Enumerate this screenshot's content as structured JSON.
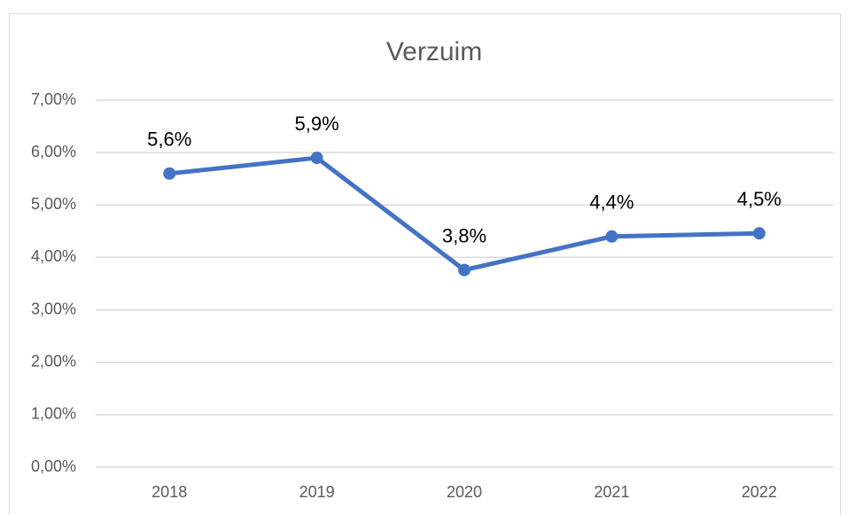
{
  "chart_data": {
    "type": "line",
    "title": "Verzuim",
    "categories": [
      "2018",
      "2019",
      "2020",
      "2021",
      "2022"
    ],
    "series": [
      {
        "name": "Verzuim",
        "color": "#4472c4",
        "values": [
          5.6,
          5.9,
          3.76,
          4.4,
          4.46
        ],
        "value_labels": [
          "5,6%",
          "5,9%",
          "3,8%",
          "4,4%",
          "4,5%"
        ]
      }
    ],
    "ylim": [
      0,
      7
    ],
    "yticks": [
      {
        "value": 0,
        "label": "0,00%"
      },
      {
        "value": 1,
        "label": "1,00%"
      },
      {
        "value": 2,
        "label": "2,00%"
      },
      {
        "value": 3,
        "label": "3,00%"
      },
      {
        "value": 4,
        "label": "4,00%"
      },
      {
        "value": 5,
        "label": "5,00%"
      },
      {
        "value": 6,
        "label": "6,00%"
      },
      {
        "value": 7,
        "label": "7,00%"
      }
    ],
    "grid": true
  }
}
